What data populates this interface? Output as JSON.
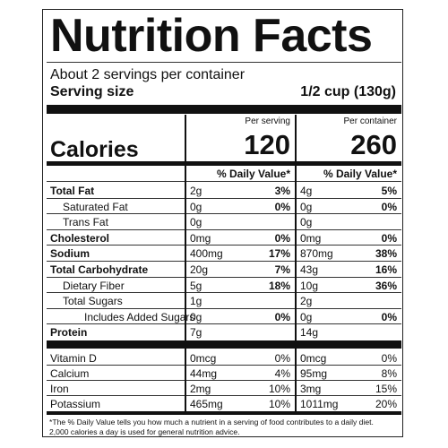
{
  "title": "Nutrition Facts",
  "servings": "About 2 servings per container",
  "serving_size": {
    "label": "Serving size",
    "value": "1/2 cup (130g)"
  },
  "columns": [
    "Per serving",
    "Per container"
  ],
  "calories": {
    "label": "Calories",
    "values": [
      120,
      260
    ]
  },
  "dv_header": "% Daily Value*",
  "rows": [
    {
      "label": "Total Fat",
      "bold": true,
      "indent": 0,
      "cells": [
        [
          "2g",
          "3%"
        ],
        [
          "4g",
          "5%"
        ]
      ]
    },
    {
      "label": "Saturated Fat",
      "bold": false,
      "indent": 1,
      "cells": [
        [
          "0g",
          "0%"
        ],
        [
          "0g",
          "0%"
        ]
      ]
    },
    {
      "label": "Trans Fat",
      "bold": false,
      "indent": 1,
      "cells": [
        [
          "0g"
        ],
        [
          "0g"
        ]
      ]
    },
    {
      "label": "Cholesterol",
      "bold": true,
      "indent": 0,
      "cells": [
        [
          "0mg",
          "0%"
        ],
        [
          "0mg",
          "0%"
        ]
      ]
    },
    {
      "label": "Sodium",
      "bold": true,
      "indent": 0,
      "cells": [
        [
          "400mg",
          "17%"
        ],
        [
          "870mg",
          "38%"
        ]
      ]
    },
    {
      "label": "Total Carbohydrate",
      "bold": true,
      "indent": 0,
      "cells": [
        [
          "20g",
          "7%"
        ],
        [
          "43g",
          "16%"
        ]
      ]
    },
    {
      "label": "Dietary Fiber",
      "bold": false,
      "indent": 1,
      "cells": [
        [
          "5g",
          "18%"
        ],
        [
          "10g",
          "36%"
        ]
      ]
    },
    {
      "label": "Total Sugars",
      "bold": false,
      "indent": 1,
      "cells": [
        [
          "1g"
        ],
        [
          "2g"
        ]
      ]
    },
    {
      "label": "Includes Added Sugars",
      "bold": false,
      "indent": 2,
      "cells": [
        [
          "0g",
          "0%"
        ],
        [
          "0g",
          "0%"
        ]
      ]
    },
    {
      "label": "Protein",
      "bold": true,
      "indent": 0,
      "cells": [
        [
          "7g"
        ],
        [
          "14g"
        ]
      ]
    }
  ],
  "vitamins": [
    {
      "label": "Vitamin D",
      "cells": [
        [
          "0mcg",
          "0%"
        ],
        [
          "0mcg",
          "0%"
        ]
      ]
    },
    {
      "label": "Calcium",
      "cells": [
        [
          "44mg",
          "4%"
        ],
        [
          "95mg",
          "8%"
        ]
      ]
    },
    {
      "label": "Iron",
      "cells": [
        [
          "2mg",
          "10%"
        ],
        [
          "3mg",
          "15%"
        ]
      ]
    },
    {
      "label": "Potassium",
      "cells": [
        [
          "465mg",
          "10%"
        ],
        [
          "1011mg",
          "20%"
        ]
      ]
    }
  ],
  "footnote": [
    "*The % Daily Value tells you how much a nutrient in a serving of food contributes to a daily diet.",
    "2,000 calories a day is used for general nutrition advice."
  ]
}
